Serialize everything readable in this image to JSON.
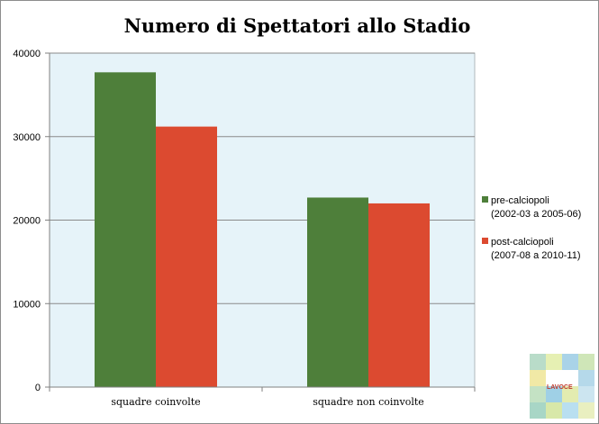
{
  "chart_data": {
    "type": "bar",
    "title": "Numero di Spettatori allo Stadio",
    "xlabel": "",
    "ylabel": "",
    "categories": [
      "squadre coinvolte",
      "squadre non coinvolte"
    ],
    "series": [
      {
        "name_lines": [
          "pre-calciopoli",
          "(2002-03 a 2005-06)"
        ],
        "color": "#4e7f3a",
        "values": [
          37700,
          22700
        ]
      },
      {
        "name_lines": [
          "post-calciopoli",
          "(2007-08 a 2010-11)"
        ],
        "color": "#dc4a30",
        "values": [
          31200,
          22000
        ]
      }
    ],
    "ylim": [
      0,
      40000
    ],
    "yticks": [
      "0",
      "10000",
      "20000",
      "30000",
      "40000"
    ],
    "grid": true,
    "legend": "right",
    "plot_background": "#e6f3f9"
  },
  "logo": {
    "text": "LAVOCE",
    "icon": "lavoce-logo-icon"
  }
}
